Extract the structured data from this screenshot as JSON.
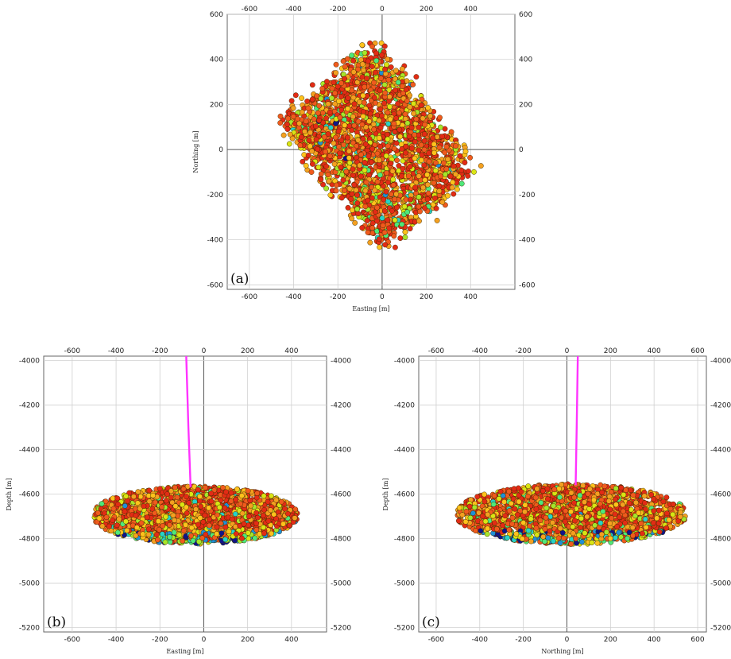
{
  "figure": {
    "background": "#ffffff",
    "well_color": "#ff33ff",
    "event_colors": [
      "#e32b15",
      "#f05a1d",
      "#f4a020",
      "#ffc21c",
      "#d9e514",
      "#a6e62a",
      "#4ee87a",
      "#27d2c6",
      "#1f8fd6",
      "#10148a"
    ]
  },
  "chart_data": [
    {
      "id": "a",
      "type": "scatter",
      "panel_label": "(a)",
      "xlabel": "Easting [m]",
      "ylabel": "Northing [m]",
      "xlim": [
        -700,
        600
      ],
      "ylim": [
        -620,
        600
      ],
      "xticks": [
        -600,
        -400,
        -200,
        0,
        200,
        400
      ],
      "yticks": [
        -600,
        -400,
        -200,
        0,
        200,
        400,
        600
      ],
      "grid": true,
      "event_cloud": {
        "count": 2600,
        "shape": "rotated-rectangle",
        "center": [
          -20,
          20
        ],
        "half_length": 360,
        "half_width": 270,
        "rotation_deg": -50
      }
    },
    {
      "id": "b",
      "type": "scatter",
      "panel_label": "(b)",
      "xlabel": "Easting [m]",
      "ylabel": "Depth [m]",
      "xlim": [
        -730,
        560
      ],
      "ylim": [
        -5220,
        -3980
      ],
      "xticks": [
        -600,
        -400,
        -200,
        0,
        200,
        400
      ],
      "yticks": [
        -5200,
        -5000,
        -4800,
        -4600,
        -4400,
        -4200,
        -4000
      ],
      "grid": true,
      "well_trajectory": {
        "x": [
          -80,
          -70,
          -60
        ],
        "y": [
          -3980,
          -4300,
          -4570
        ]
      },
      "event_cloud": {
        "count": 2200,
        "shape": "ellipse",
        "center": [
          -40,
          -4695
        ],
        "half_length": 470,
        "half_height": 130
      }
    },
    {
      "id": "c",
      "type": "scatter",
      "panel_label": "(c)",
      "xlabel": "Northing [m]",
      "ylabel": "Depth [m]",
      "xlim": [
        -680,
        640
      ],
      "ylim": [
        -5220,
        -3980
      ],
      "xticks": [
        -600,
        -400,
        -200,
        0,
        200,
        400,
        600
      ],
      "yticks": [
        -5200,
        -5000,
        -4800,
        -4600,
        -4400,
        -4200,
        -4000
      ],
      "grid": true,
      "well_trajectory": {
        "x": [
          50,
          45,
          40
        ],
        "y": [
          -3980,
          -4300,
          -4560
        ]
      },
      "event_cloud": {
        "count": 2200,
        "shape": "ellipse",
        "center": [
          20,
          -4690
        ],
        "half_length": 530,
        "half_height": 135
      }
    }
  ]
}
